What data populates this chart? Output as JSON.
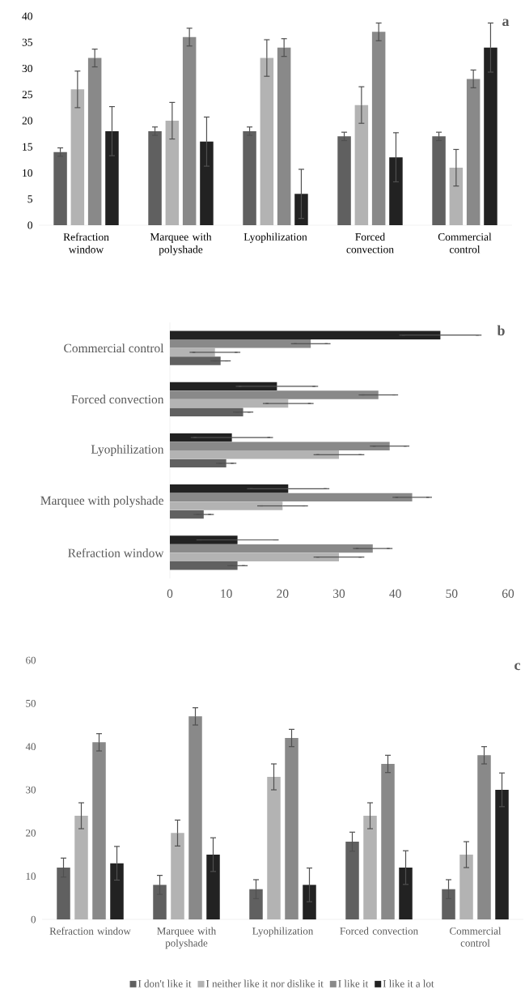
{
  "chart_data": [
    {
      "type": "bar",
      "title": "a",
      "categories": [
        "Refraction window",
        "Marquee with polyshade",
        "Lyophilization",
        "Forced convection",
        "Commercial control"
      ],
      "ylim": [
        0,
        40
      ],
      "yticks": [
        0,
        5,
        10,
        15,
        20,
        25,
        30,
        35,
        40
      ],
      "series": [
        {
          "color": "#606060",
          "values": [
            14,
            18,
            18,
            17,
            17
          ],
          "errors": [
            0.8,
            0.8,
            0.8,
            0.8,
            0.8
          ]
        },
        {
          "color": "#b3b3b3",
          "values": [
            26,
            20,
            32,
            23,
            11
          ],
          "errors": [
            3.5,
            3.5,
            3.5,
            3.5,
            3.5
          ]
        },
        {
          "color": "#898989",
          "values": [
            32,
            36,
            34,
            37,
            28
          ],
          "errors": [
            1.7,
            1.7,
            1.7,
            1.7,
            1.7
          ]
        },
        {
          "color": "#222222",
          "values": [
            18,
            16,
            6,
            13,
            34
          ],
          "errors": [
            4.7,
            4.7,
            4.7,
            4.7,
            4.7
          ]
        }
      ]
    },
    {
      "type": "bar",
      "orientation": "horizontal",
      "title": "b",
      "categories": [
        "Commercial control",
        "Forced convection",
        "Lyophilization",
        "Marquee with polyshade",
        "Refraction window"
      ],
      "xlim": [
        0,
        60
      ],
      "xticks": [
        0,
        10,
        20,
        30,
        40,
        50,
        60
      ],
      "series": [
        {
          "color": "#606060",
          "values": [
            9,
            13,
            10,
            6,
            12
          ],
          "errors": [
            1.3,
            1.3,
            1.3,
            1.3,
            1.3
          ]
        },
        {
          "color": "#b3b3b3",
          "values": [
            8,
            21,
            30,
            20,
            30
          ],
          "errors": [
            4,
            4,
            4,
            4,
            4
          ]
        },
        {
          "color": "#898989",
          "values": [
            25,
            37,
            39,
            43,
            36
          ],
          "errors": [
            3,
            3,
            3,
            3,
            3
          ]
        },
        {
          "color": "#222222",
          "values": [
            48,
            19,
            11,
            21,
            12
          ],
          "errors": [
            6.8,
            6.8,
            6.8,
            6.8,
            6.8
          ]
        }
      ]
    },
    {
      "type": "bar",
      "title": "c",
      "categories": [
        "Refraction window",
        "Marquee with polyshade",
        "Lyophilization",
        "Forced convection",
        "Commercial control"
      ],
      "ylim": [
        0,
        60
      ],
      "yticks": [
        0,
        10,
        20,
        30,
        40,
        50,
        60
      ],
      "legend": "bottom",
      "series": [
        {
          "name": "I don't like it",
          "color": "#606060",
          "values": [
            12,
            8,
            7,
            18,
            7
          ],
          "errors": [
            2.2,
            2.2,
            2.2,
            2.2,
            2.2
          ]
        },
        {
          "name": "I neither like it nor dislike it",
          "color": "#b3b3b3",
          "values": [
            24,
            20,
            33,
            24,
            15
          ],
          "errors": [
            3,
            3,
            3,
            3,
            3
          ]
        },
        {
          "name": "I like it",
          "color": "#898989",
          "values": [
            41,
            47,
            42,
            36,
            38
          ],
          "errors": [
            2,
            2,
            2,
            2,
            2
          ]
        },
        {
          "name": "I like it a lot",
          "color": "#222222",
          "values": [
            13,
            15,
            8,
            12,
            30
          ],
          "errors": [
            3.9,
            3.9,
            3.9,
            3.9,
            3.9
          ]
        }
      ]
    }
  ]
}
